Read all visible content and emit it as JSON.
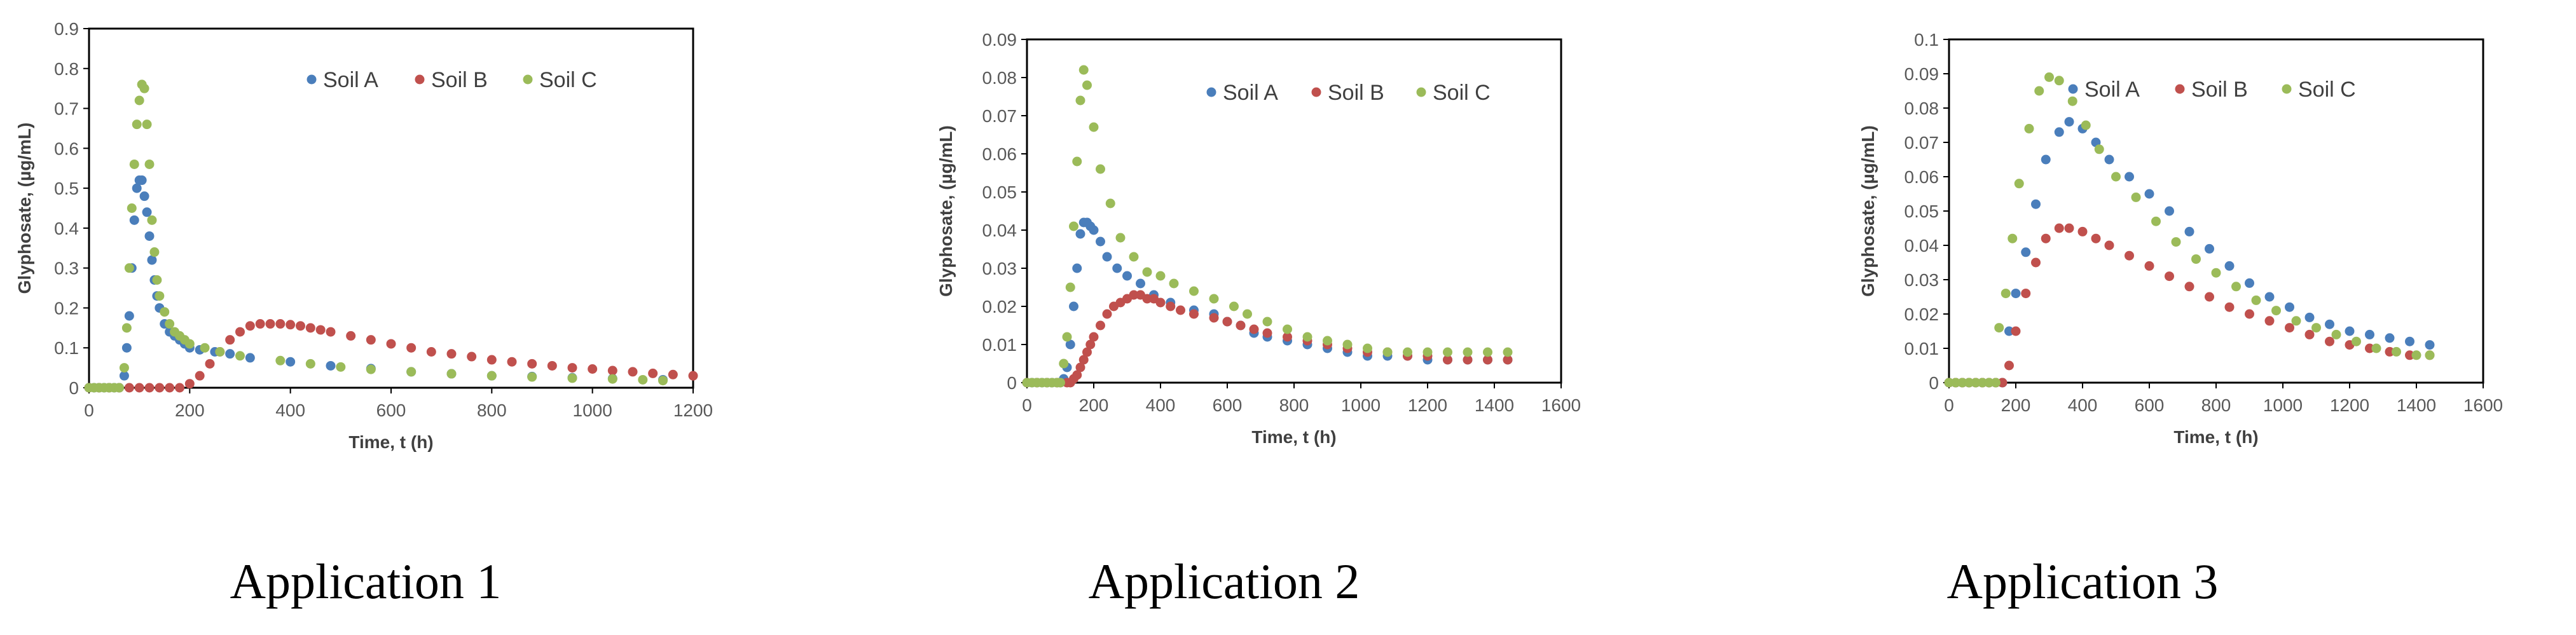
{
  "figure": {
    "colors": {
      "Soil A": "#4a7ebb",
      "Soil B": "#c0504d",
      "Soil C": "#9bbb59"
    }
  },
  "chart_data": [
    {
      "type": "scatter",
      "caption": "Application 1",
      "xlabel": "Time, t (h)",
      "ylabel": "Glyphosate, (µg/mL)",
      "xlim": [
        0,
        1200
      ],
      "ylim": [
        0,
        0.9
      ],
      "xticks": [
        0,
        200,
        400,
        600,
        800,
        1000,
        1200
      ],
      "yticks": [
        0,
        0.1,
        0.2,
        0.3,
        0.4,
        0.5,
        0.6,
        0.7,
        0.8,
        0.9
      ],
      "ytick_labels": [
        "0",
        "0.1",
        "0.2",
        "0.3",
        "0.4",
        "0.5",
        "0.6",
        "0.7",
        "0.8",
        "0.9"
      ],
      "legend": "top-right",
      "grid": false,
      "series": [
        {
          "name": "Soil A",
          "color": "#4a7ebb",
          "x": [
            0,
            10,
            20,
            30,
            40,
            50,
            60,
            70,
            75,
            80,
            85,
            90,
            95,
            100,
            105,
            110,
            115,
            120,
            125,
            130,
            135,
            140,
            150,
            160,
            170,
            180,
            190,
            200,
            220,
            250,
            280,
            320,
            400,
            480,
            560,
            640,
            720,
            800,
            880,
            960,
            1040,
            1140
          ],
          "y": [
            0,
            0,
            0,
            0,
            0,
            0,
            0,
            0.03,
            0.1,
            0.18,
            0.3,
            0.42,
            0.5,
            0.52,
            0.52,
            0.48,
            0.44,
            0.38,
            0.32,
            0.27,
            0.23,
            0.2,
            0.16,
            0.14,
            0.13,
            0.12,
            0.11,
            0.1,
            0.095,
            0.09,
            0.085,
            0.075,
            0.065,
            0.055,
            0.048,
            0.04,
            0.035,
            0.03,
            0.028,
            0.025,
            0.023,
            0.02
          ]
        },
        {
          "name": "Soil B",
          "color": "#c0504d",
          "x": [
            0,
            20,
            40,
            60,
            80,
            100,
            120,
            140,
            160,
            180,
            200,
            220,
            240,
            260,
            280,
            300,
            320,
            340,
            360,
            380,
            400,
            420,
            440,
            460,
            480,
            520,
            560,
            600,
            640,
            680,
            720,
            760,
            800,
            840,
            880,
            920,
            960,
            1000,
            1040,
            1080,
            1120,
            1160,
            1200
          ],
          "y": [
            0,
            0,
            0,
            0,
            0,
            0,
            0,
            0,
            0,
            0,
            0.01,
            0.03,
            0.06,
            0.09,
            0.12,
            0.14,
            0.155,
            0.16,
            0.16,
            0.16,
            0.158,
            0.155,
            0.15,
            0.145,
            0.14,
            0.13,
            0.12,
            0.11,
            0.1,
            0.09,
            0.085,
            0.078,
            0.07,
            0.065,
            0.06,
            0.055,
            0.05,
            0.047,
            0.043,
            0.04,
            0.036,
            0.033,
            0.03
          ]
        },
        {
          "name": "Soil C",
          "color": "#9bbb59",
          "x": [
            0,
            10,
            20,
            30,
            40,
            50,
            60,
            70,
            75,
            80,
            85,
            90,
            95,
            100,
            105,
            110,
            115,
            120,
            125,
            130,
            135,
            140,
            150,
            160,
            170,
            180,
            190,
            200,
            230,
            260,
            300,
            380,
            440,
            500,
            560,
            640,
            720,
            800,
            880,
            960,
            1040,
            1100,
            1140
          ],
          "y": [
            0,
            0,
            0,
            0,
            0,
            0,
            0,
            0.05,
            0.15,
            0.3,
            0.45,
            0.56,
            0.66,
            0.72,
            0.76,
            0.75,
            0.66,
            0.56,
            0.42,
            0.34,
            0.27,
            0.23,
            0.19,
            0.16,
            0.14,
            0.13,
            0.12,
            0.11,
            0.1,
            0.09,
            0.08,
            0.068,
            0.06,
            0.052,
            0.046,
            0.04,
            0.035,
            0.03,
            0.027,
            0.024,
            0.022,
            0.02,
            0.018
          ]
        }
      ]
    },
    {
      "type": "scatter",
      "caption": "Application 2",
      "xlabel": "Time, t (h)",
      "ylabel": "Glyphosate, (µg/mL)",
      "xlim": [
        0,
        1600
      ],
      "ylim": [
        0,
        0.09
      ],
      "xticks": [
        0,
        200,
        400,
        600,
        800,
        1000,
        1200,
        1400,
        1600
      ],
      "yticks": [
        0,
        0.01,
        0.02,
        0.03,
        0.04,
        0.05,
        0.06,
        0.07,
        0.08,
        0.09
      ],
      "ytick_labels": [
        "0",
        "0.01",
        "0.02",
        "0.03",
        "0.04",
        "0.05",
        "0.06",
        "0.07",
        "0.08",
        "0.09"
      ],
      "legend": "top-right",
      "grid": false,
      "series": [
        {
          "name": "Soil A",
          "color": "#4a7ebb",
          "x": [
            0,
            15,
            30,
            45,
            60,
            75,
            90,
            100,
            110,
            120,
            130,
            140,
            150,
            160,
            170,
            180,
            190,
            200,
            220,
            240,
            270,
            300,
            340,
            380,
            430,
            500,
            560,
            600,
            640,
            680,
            720,
            780,
            840,
            900,
            960,
            1020,
            1080,
            1140,
            1200,
            1260,
            1320,
            1380,
            1440
          ],
          "y": [
            0,
            0,
            0,
            0,
            0,
            0,
            0,
            0,
            0.001,
            0.004,
            0.01,
            0.02,
            0.03,
            0.039,
            0.042,
            0.042,
            0.041,
            0.04,
            0.037,
            0.033,
            0.03,
            0.028,
            0.026,
            0.023,
            0.021,
            0.019,
            0.018,
            0.016,
            0.015,
            0.013,
            0.012,
            0.011,
            0.01,
            0.009,
            0.008,
            0.007,
            0.007,
            0.007,
            0.006,
            0.006,
            0.006,
            0.006,
            0.006
          ]
        },
        {
          "name": "Soil B",
          "color": "#c0504d",
          "x": [
            0,
            30,
            60,
            90,
            120,
            130,
            140,
            150,
            160,
            170,
            180,
            190,
            200,
            220,
            240,
            260,
            280,
            300,
            320,
            340,
            360,
            380,
            400,
            430,
            460,
            500,
            560,
            600,
            640,
            680,
            720,
            780,
            840,
            900,
            960,
            1020,
            1080,
            1140,
            1200,
            1260,
            1320,
            1380,
            1440
          ],
          "y": [
            0,
            0,
            0,
            0,
            0,
            0,
            0.001,
            0.002,
            0.004,
            0.006,
            0.008,
            0.01,
            0.012,
            0.015,
            0.018,
            0.02,
            0.021,
            0.022,
            0.023,
            0.023,
            0.022,
            0.022,
            0.021,
            0.02,
            0.019,
            0.018,
            0.017,
            0.016,
            0.015,
            0.014,
            0.013,
            0.012,
            0.011,
            0.01,
            0.009,
            0.008,
            0.008,
            0.007,
            0.007,
            0.006,
            0.006,
            0.006,
            0.006
          ]
        },
        {
          "name": "Soil C",
          "color": "#9bbb59",
          "x": [
            0,
            15,
            30,
            45,
            60,
            75,
            90,
            100,
            110,
            120,
            130,
            140,
            150,
            160,
            170,
            180,
            200,
            220,
            250,
            280,
            320,
            360,
            400,
            440,
            500,
            560,
            620,
            660,
            720,
            780,
            840,
            900,
            960,
            1020,
            1080,
            1140,
            1200,
            1260,
            1320,
            1380,
            1440
          ],
          "y": [
            0,
            0,
            0,
            0,
            0,
            0,
            0,
            0,
            0.005,
            0.012,
            0.025,
            0.041,
            0.058,
            0.074,
            0.082,
            0.078,
            0.067,
            0.056,
            0.047,
            0.038,
            0.033,
            0.029,
            0.028,
            0.026,
            0.024,
            0.022,
            0.02,
            0.018,
            0.016,
            0.014,
            0.012,
            0.011,
            0.01,
            0.009,
            0.008,
            0.008,
            0.008,
            0.008,
            0.008,
            0.008,
            0.008
          ]
        }
      ]
    },
    {
      "type": "scatter",
      "caption": "Application 3",
      "xlabel": "Time, t (h)",
      "ylabel": "Glyphosate, (µg/mL)",
      "xlim": [
        0,
        1600
      ],
      "ylim": [
        0,
        0.1
      ],
      "xticks": [
        0,
        200,
        400,
        600,
        800,
        1000,
        1200,
        1400,
        1600
      ],
      "yticks": [
        0,
        0.01,
        0.02,
        0.03,
        0.04,
        0.05,
        0.06,
        0.07,
        0.08,
        0.09,
        0.1
      ],
      "ytick_labels": [
        "0",
        "0.01",
        "0.02",
        "0.03",
        "0.04",
        "0.05",
        "0.06",
        "0.07",
        "0.08",
        "0.09",
        "0.1"
      ],
      "legend": "top-right",
      "grid": false,
      "series": [
        {
          "name": "Soil A",
          "color": "#4a7ebb",
          "x": [
            0,
            20,
            40,
            60,
            80,
            100,
            120,
            140,
            160,
            180,
            200,
            230,
            260,
            290,
            330,
            360,
            400,
            440,
            480,
            540,
            600,
            660,
            720,
            780,
            840,
            900,
            960,
            1020,
            1080,
            1140,
            1200,
            1260,
            1320,
            1380,
            1440
          ],
          "y": [
            0,
            0,
            0,
            0,
            0,
            0,
            0,
            0,
            0,
            0.015,
            0.026,
            0.038,
            0.052,
            0.065,
            0.073,
            0.076,
            0.074,
            0.07,
            0.065,
            0.06,
            0.055,
            0.05,
            0.044,
            0.039,
            0.034,
            0.029,
            0.025,
            0.022,
            0.019,
            0.017,
            0.015,
            0.014,
            0.013,
            0.012,
            0.011
          ]
        },
        {
          "name": "Soil B",
          "color": "#c0504d",
          "x": [
            0,
            20,
            40,
            60,
            80,
            100,
            120,
            140,
            160,
            180,
            200,
            230,
            260,
            290,
            330,
            360,
            400,
            440,
            480,
            540,
            600,
            660,
            720,
            780,
            840,
            900,
            960,
            1020,
            1080,
            1140,
            1200,
            1260,
            1320,
            1380,
            1440
          ],
          "y": [
            0,
            0,
            0,
            0,
            0,
            0,
            0,
            0,
            0,
            0.005,
            0.015,
            0.026,
            0.035,
            0.042,
            0.045,
            0.045,
            0.044,
            0.042,
            0.04,
            0.037,
            0.034,
            0.031,
            0.028,
            0.025,
            0.022,
            0.02,
            0.018,
            0.016,
            0.014,
            0.012,
            0.011,
            0.01,
            0.009,
            0.008,
            0.008
          ]
        },
        {
          "name": "Soil C",
          "color": "#9bbb59",
          "x": [
            0,
            20,
            40,
            60,
            80,
            100,
            120,
            140,
            150,
            170,
            190,
            210,
            240,
            270,
            300,
            330,
            370,
            410,
            450,
            500,
            560,
            620,
            680,
            740,
            800,
            860,
            920,
            980,
            1040,
            1100,
            1160,
            1220,
            1280,
            1340,
            1400,
            1440
          ],
          "y": [
            0,
            0,
            0,
            0,
            0,
            0,
            0,
            0,
            0.016,
            0.026,
            0.042,
            0.058,
            0.074,
            0.085,
            0.089,
            0.088,
            0.082,
            0.075,
            0.068,
            0.06,
            0.054,
            0.047,
            0.041,
            0.036,
            0.032,
            0.028,
            0.024,
            0.021,
            0.018,
            0.016,
            0.014,
            0.012,
            0.01,
            0.009,
            0.008,
            0.008
          ]
        }
      ]
    }
  ]
}
